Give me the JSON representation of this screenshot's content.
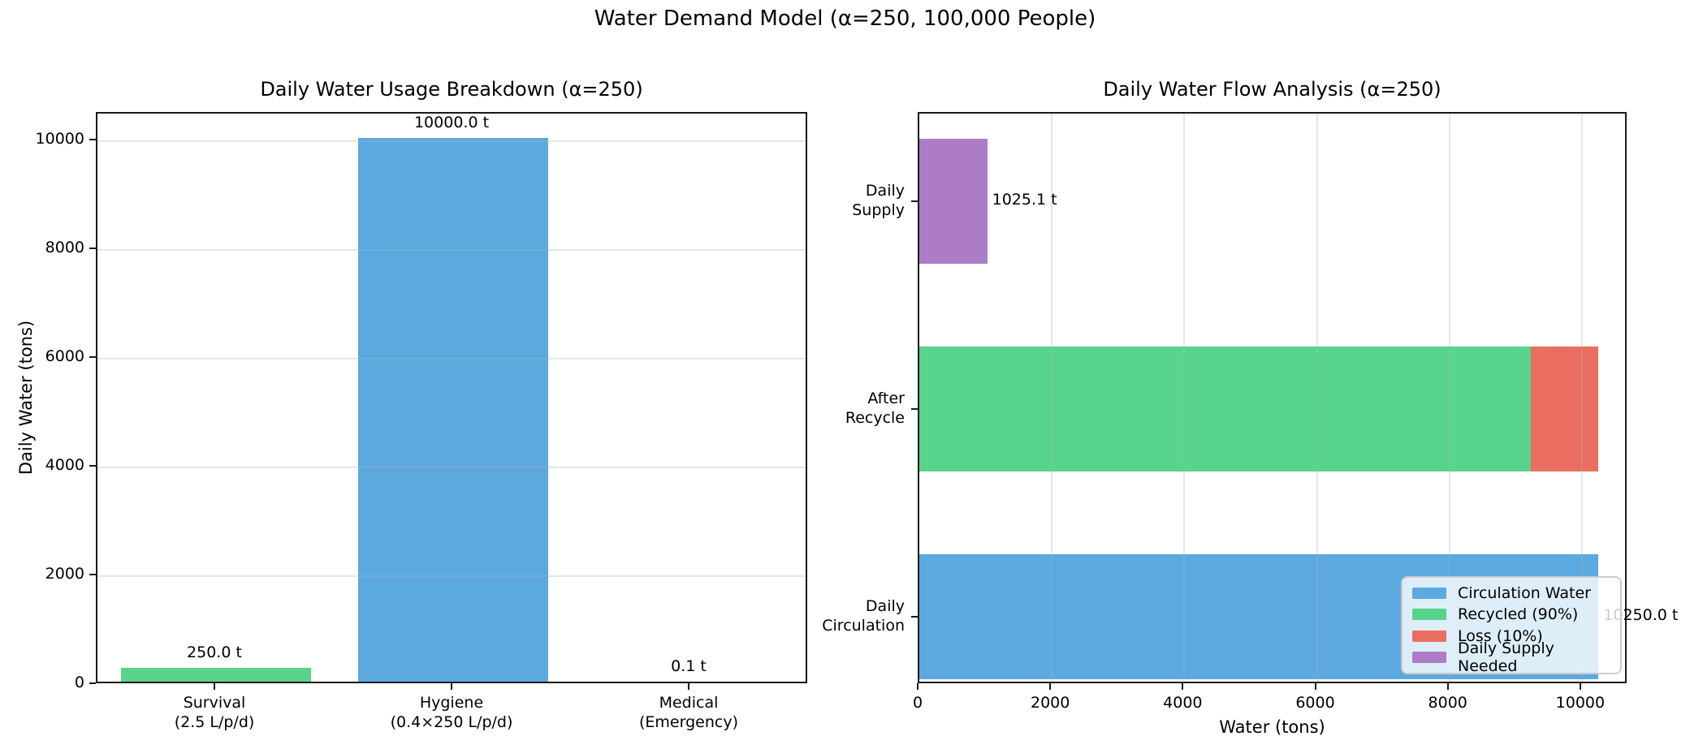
{
  "suptitle": "Water Demand Model (α=250, 100,000 People)",
  "styles": {
    "background": "#ffffff",
    "spine_color": "#1a1a1a",
    "grid_color": "#b0b0b0",
    "legend_border": "#cccccc",
    "text_color": "#000000"
  },
  "chart_data": [
    {
      "id": "usage-breakdown",
      "type": "bar",
      "title": "Daily Water Usage Breakdown (α=250)",
      "xlabel": "",
      "ylabel": "Daily Water (tons)",
      "categories": [
        [
          "Survival",
          "(2.5 L/p/d)"
        ],
        [
          "Hygiene",
          "(0.4×250 L/p/d)"
        ],
        [
          "Medical",
          "(Emergency)"
        ]
      ],
      "values": [
        250.0,
        10000.0,
        0.1
      ],
      "value_labels": [
        "250.0 t",
        "10000.0 t",
        "0.1 t"
      ],
      "bar_colors": [
        "#58D48C",
        "#5BA9DF",
        "#E96E60"
      ],
      "yticks": [
        0,
        2000,
        4000,
        6000,
        8000,
        10000
      ],
      "ylim": [
        0,
        10500
      ],
      "bar_width": 0.8,
      "grid": "horizontal",
      "legend": null
    },
    {
      "id": "flow-analysis",
      "type": "bar-horizontal",
      "title": "Daily Water Flow Analysis (α=250)",
      "xlabel": "Water (tons)",
      "ylabel": "",
      "rows": [
        {
          "label_lines": [
            "Daily",
            "Supply"
          ],
          "segments": [
            {
              "name": "Daily Supply Needed",
              "value": 1025.1,
              "color": "#AC7CC6"
            }
          ],
          "total": 1025.1,
          "value_label": "1025.1 t"
        },
        {
          "label_lines": [
            "After",
            "Recycle"
          ],
          "segments": [
            {
              "name": "Recycled (90%)",
              "value": 9225.0,
              "color": "#58D48C"
            },
            {
              "name": "Loss (10%)",
              "value": 1025.0,
              "color": "#E96E60"
            }
          ],
          "total": 10250.0,
          "value_label": ""
        },
        {
          "label_lines": [
            "Daily",
            "Circulation"
          ],
          "segments": [
            {
              "name": "Circulation Water",
              "value": 10250.0,
              "color": "#5BA9DF"
            }
          ],
          "total": 10250.0,
          "value_label": "10250.0 t"
        }
      ],
      "xticks": [
        0,
        2000,
        4000,
        6000,
        8000,
        10000
      ],
      "xlim": [
        0,
        10700
      ],
      "ylim": [
        -0.32,
        2.43
      ],
      "bar_height": 0.6,
      "grid": "vertical",
      "legend": {
        "position": "lower right",
        "entries": [
          {
            "label": "Circulation Water",
            "color": "#5BA9DF"
          },
          {
            "label": "Recycled (90%)",
            "color": "#58D48C"
          },
          {
            "label": "Loss (10%)",
            "color": "#E96E60"
          },
          {
            "label": "Daily Supply Needed",
            "color": "#AC7CC6"
          }
        ]
      }
    }
  ]
}
